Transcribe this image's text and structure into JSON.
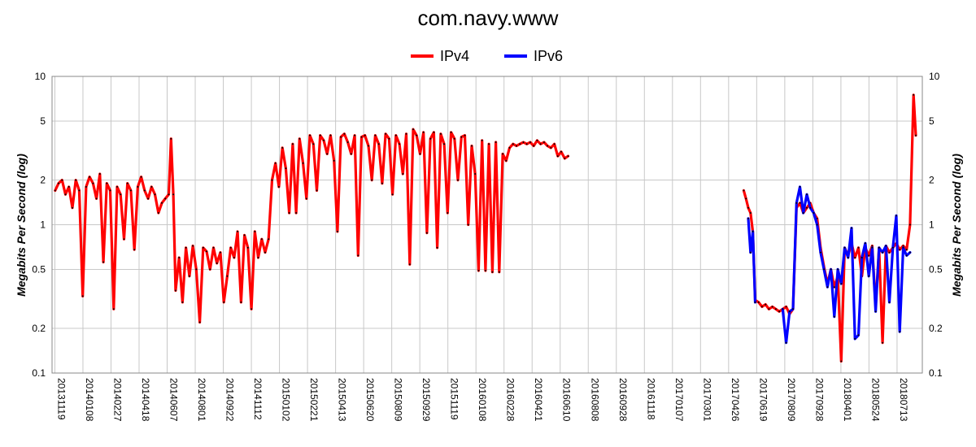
{
  "chart_data": {
    "type": "line",
    "title": "com.navy.www",
    "ylabel": "Megabits Per Second (log)",
    "y_scale": "log",
    "ylim": [
      0.1,
      10
    ],
    "y_ticks": [
      {
        "value": 0.1,
        "label": "0.1"
      },
      {
        "value": 0.2,
        "label": "0.2"
      },
      {
        "value": 0.5,
        "label": "0.5"
      },
      {
        "value": 1,
        "label": "1"
      },
      {
        "value": 2,
        "label": "2"
      },
      {
        "value": 5,
        "label": "5"
      },
      {
        "value": 10,
        "label": "10"
      }
    ],
    "x_tick_labels": [
      "20131119",
      "20140108",
      "20140227",
      "20140418",
      "20140607",
      "20140801",
      "20140922",
      "20141112",
      "20150102",
      "20150221",
      "20150413",
      "20150620",
      "20150809",
      "20150929",
      "20151119",
      "20160108",
      "20160228",
      "20160421",
      "20160610",
      "20160808",
      "20160928",
      "20161118",
      "20170107",
      "20170301",
      "20170426",
      "20170619",
      "20170809",
      "20170928",
      "20180401",
      "20180524",
      "20180713"
    ],
    "grid": true,
    "legend_placement": "top-center",
    "series": [
      {
        "name": "IPv4",
        "color": "#ff0000",
        "points": [
          [
            0,
            1.7
          ],
          [
            0.3,
            1.9
          ],
          [
            0.6,
            2.0
          ],
          [
            0.9,
            1.6
          ],
          [
            1.2,
            1.8
          ],
          [
            1.5,
            1.3
          ],
          [
            1.8,
            2.0
          ],
          [
            2.1,
            1.7
          ],
          [
            2.4,
            0.33
          ],
          [
            2.7,
            1.8
          ],
          [
            3.0,
            2.1
          ],
          [
            3.3,
            1.9
          ],
          [
            3.6,
            1.5
          ],
          [
            3.9,
            2.2
          ],
          [
            4.2,
            0.56
          ],
          [
            4.5,
            1.9
          ],
          [
            4.8,
            1.7
          ],
          [
            5.1,
            0.27
          ],
          [
            5.4,
            1.8
          ],
          [
            5.7,
            1.6
          ],
          [
            6.0,
            0.8
          ],
          [
            6.3,
            1.9
          ],
          [
            6.6,
            1.7
          ],
          [
            6.9,
            0.68
          ],
          [
            7.2,
            1.8
          ],
          [
            7.5,
            2.1
          ],
          [
            7.8,
            1.7
          ],
          [
            8.1,
            1.5
          ],
          [
            8.4,
            1.8
          ],
          [
            8.7,
            1.6
          ],
          [
            9.0,
            1.2
          ],
          [
            9.3,
            1.4
          ],
          [
            9.6,
            1.5
          ],
          [
            9.9,
            1.6
          ],
          [
            10.1,
            3.8
          ],
          [
            10.3,
            1.6
          ],
          [
            10.5,
            0.36
          ],
          [
            10.8,
            0.6
          ],
          [
            11.1,
            0.3
          ],
          [
            11.4,
            0.7
          ],
          [
            11.7,
            0.45
          ],
          [
            12.0,
            0.72
          ],
          [
            12.3,
            0.5
          ],
          [
            12.6,
            0.22
          ],
          [
            12.9,
            0.7
          ],
          [
            13.2,
            0.66
          ],
          [
            13.5,
            0.5
          ],
          [
            13.8,
            0.7
          ],
          [
            14.1,
            0.55
          ],
          [
            14.4,
            0.65
          ],
          [
            14.7,
            0.3
          ],
          [
            15.0,
            0.45
          ],
          [
            15.3,
            0.7
          ],
          [
            15.6,
            0.6
          ],
          [
            15.9,
            0.9
          ],
          [
            16.2,
            0.3
          ],
          [
            16.5,
            0.85
          ],
          [
            16.8,
            0.7
          ],
          [
            17.1,
            0.27
          ],
          [
            17.4,
            0.9
          ],
          [
            17.7,
            0.6
          ],
          [
            18.0,
            0.8
          ],
          [
            18.3,
            0.65
          ],
          [
            18.6,
            0.8
          ],
          [
            18.9,
            2.0
          ],
          [
            19.2,
            2.6
          ],
          [
            19.5,
            1.8
          ],
          [
            19.8,
            3.3
          ],
          [
            20.1,
            2.4
          ],
          [
            20.4,
            1.2
          ],
          [
            20.7,
            3.5
          ],
          [
            21.0,
            1.2
          ],
          [
            21.3,
            3.8
          ],
          [
            21.6,
            2.6
          ],
          [
            21.9,
            1.5
          ],
          [
            22.2,
            4.0
          ],
          [
            22.5,
            3.5
          ],
          [
            22.8,
            1.7
          ],
          [
            23.1,
            4.0
          ],
          [
            23.4,
            3.7
          ],
          [
            23.7,
            3.0
          ],
          [
            24.0,
            4.0
          ],
          [
            24.3,
            2.7
          ],
          [
            24.6,
            0.9
          ],
          [
            24.9,
            3.9
          ],
          [
            25.2,
            4.1
          ],
          [
            25.5,
            3.6
          ],
          [
            25.8,
            3.0
          ],
          [
            26.1,
            4.0
          ],
          [
            26.4,
            0.62
          ],
          [
            26.7,
            3.9
          ],
          [
            27.0,
            4.0
          ],
          [
            27.3,
            3.4
          ],
          [
            27.6,
            2.0
          ],
          [
            27.9,
            4.0
          ],
          [
            28.2,
            3.5
          ],
          [
            28.5,
            1.9
          ],
          [
            28.8,
            4.1
          ],
          [
            29.1,
            3.8
          ],
          [
            29.4,
            1.6
          ],
          [
            29.7,
            4.0
          ],
          [
            30.0,
            3.5
          ],
          [
            30.3,
            2.2
          ],
          [
            30.6,
            4.1
          ],
          [
            30.9,
            0.54
          ],
          [
            31.2,
            4.4
          ],
          [
            31.5,
            4.0
          ],
          [
            31.8,
            3.0
          ],
          [
            32.1,
            4.2
          ],
          [
            32.4,
            0.88
          ],
          [
            32.7,
            3.8
          ],
          [
            33.0,
            4.2
          ],
          [
            33.3,
            0.7
          ],
          [
            33.6,
            4.1
          ],
          [
            33.9,
            3.5
          ],
          [
            34.2,
            1.2
          ],
          [
            34.5,
            4.2
          ],
          [
            34.8,
            3.8
          ],
          [
            35.1,
            2.0
          ],
          [
            35.4,
            3.9
          ],
          [
            35.7,
            4.0
          ],
          [
            36.0,
            1.0
          ],
          [
            36.3,
            3.4
          ],
          [
            36.6,
            2.2
          ],
          [
            36.9,
            0.49
          ],
          [
            37.2,
            3.7
          ],
          [
            37.5,
            0.49
          ],
          [
            37.8,
            3.5
          ],
          [
            38.1,
            0.48
          ],
          [
            38.4,
            3.6
          ],
          [
            38.7,
            0.48
          ],
          [
            39.0,
            3.0
          ],
          [
            39.3,
            2.7
          ],
          [
            39.6,
            3.3
          ],
          [
            39.9,
            3.5
          ],
          [
            40.2,
            3.4
          ],
          [
            40.5,
            3.5
          ],
          [
            40.8,
            3.6
          ],
          [
            41.1,
            3.5
          ],
          [
            41.4,
            3.6
          ],
          [
            41.7,
            3.4
          ],
          [
            42.0,
            3.7
          ],
          [
            42.3,
            3.5
          ],
          [
            42.6,
            3.6
          ],
          [
            42.9,
            3.4
          ],
          [
            43.2,
            3.3
          ],
          [
            43.5,
            3.5
          ],
          [
            43.8,
            2.9
          ],
          [
            44.1,
            3.1
          ],
          [
            44.4,
            2.8
          ],
          [
            44.7,
            2.9
          ],
          null,
          [
            60.0,
            1.7
          ],
          [
            60.2,
            1.5
          ],
          [
            60.4,
            1.3
          ],
          [
            60.6,
            1.2
          ],
          [
            60.8,
            0.9
          ],
          [
            61.0,
            0.31
          ],
          [
            61.3,
            0.3
          ],
          [
            61.6,
            0.28
          ],
          [
            61.9,
            0.29
          ],
          [
            62.2,
            0.27
          ],
          [
            62.5,
            0.28
          ],
          [
            62.8,
            0.27
          ],
          [
            63.1,
            0.26
          ],
          [
            63.4,
            0.27
          ],
          [
            63.7,
            0.28
          ],
          [
            64.0,
            0.25
          ],
          [
            64.3,
            0.27
          ],
          [
            64.6,
            1.3
          ],
          [
            64.9,
            1.4
          ],
          [
            65.2,
            1.2
          ],
          [
            65.5,
            1.3
          ],
          [
            65.8,
            1.4
          ],
          [
            66.1,
            1.2
          ],
          [
            66.4,
            1.1
          ],
          [
            66.7,
            0.7
          ],
          [
            67.0,
            0.52
          ],
          [
            67.3,
            0.4
          ],
          [
            67.6,
            0.5
          ],
          [
            67.9,
            0.38
          ],
          [
            68.2,
            0.45
          ],
          [
            68.5,
            0.12
          ],
          [
            68.8,
            0.7
          ],
          [
            69.1,
            0.62
          ],
          [
            69.4,
            0.75
          ],
          [
            69.7,
            0.6
          ],
          [
            70.0,
            0.7
          ],
          [
            70.3,
            0.45
          ],
          [
            70.6,
            0.7
          ],
          [
            70.9,
            0.62
          ],
          [
            71.2,
            0.72
          ],
          [
            71.5,
            0.28
          ],
          [
            71.8,
            0.7
          ],
          [
            72.1,
            0.16
          ],
          [
            72.4,
            0.72
          ],
          [
            72.7,
            0.65
          ],
          [
            73.0,
            0.7
          ],
          [
            73.3,
            0.75
          ],
          [
            73.6,
            0.68
          ],
          [
            73.9,
            0.72
          ],
          [
            74.2,
            0.68
          ],
          [
            74.5,
            1.0
          ],
          [
            74.8,
            7.5
          ],
          [
            75.0,
            4.0
          ]
        ]
      },
      {
        "name": "IPv6",
        "color": "#0000ff",
        "points": [
          [
            60.4,
            1.1
          ],
          [
            60.6,
            0.65
          ],
          [
            60.8,
            0.9
          ],
          [
            61.0,
            0.3
          ],
          null,
          [
            63.4,
            0.27
          ],
          [
            63.7,
            0.16
          ],
          [
            64.0,
            0.26
          ],
          [
            64.3,
            0.27
          ],
          [
            64.6,
            1.4
          ],
          [
            64.9,
            1.8
          ],
          [
            65.2,
            1.2
          ],
          [
            65.5,
            1.6
          ],
          [
            65.8,
            1.3
          ],
          [
            66.1,
            1.2
          ],
          [
            66.4,
            1.0
          ],
          [
            66.7,
            0.65
          ],
          [
            67.0,
            0.5
          ],
          [
            67.3,
            0.38
          ],
          [
            67.6,
            0.5
          ],
          [
            67.9,
            0.24
          ],
          [
            68.2,
            0.5
          ],
          [
            68.5,
            0.4
          ],
          [
            68.8,
            0.7
          ],
          [
            69.1,
            0.6
          ],
          [
            69.4,
            0.95
          ],
          [
            69.7,
            0.17
          ],
          [
            70.0,
            0.18
          ],
          [
            70.3,
            0.6
          ],
          [
            70.6,
            0.75
          ],
          [
            70.9,
            0.45
          ],
          [
            71.2,
            0.7
          ],
          [
            71.5,
            0.26
          ],
          [
            71.8,
            0.7
          ],
          [
            72.1,
            0.65
          ],
          [
            72.4,
            0.72
          ],
          [
            72.7,
            0.3
          ],
          [
            73.0,
            0.7
          ],
          [
            73.3,
            1.15
          ],
          [
            73.6,
            0.19
          ],
          [
            73.9,
            0.7
          ],
          [
            74.2,
            0.62
          ],
          [
            74.5,
            0.65
          ]
        ]
      }
    ]
  }
}
